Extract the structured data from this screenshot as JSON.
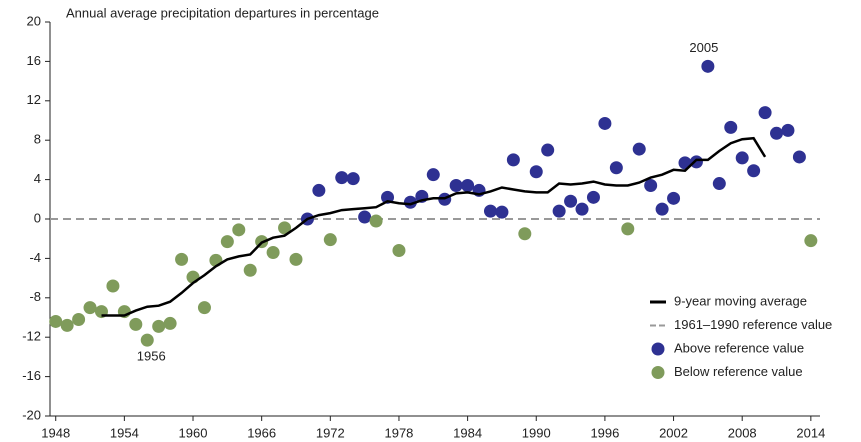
{
  "chart_data": {
    "type": "scatter",
    "title": "Annual average precipitation departures in percentage",
    "xlim": [
      1947.5,
      2014.8
    ],
    "ylim": [
      -20,
      20
    ],
    "xticks": [
      1948,
      1954,
      1960,
      1966,
      1972,
      1978,
      1984,
      1990,
      1996,
      2002,
      2008,
      2014
    ],
    "yticks": [
      20,
      16,
      12,
      8,
      4,
      0,
      -4,
      -8,
      -12,
      -16,
      -20
    ],
    "reference": {
      "name": "1961–1990 reference value",
      "value": 0,
      "color": "#999999"
    },
    "series": [
      {
        "name": "9-year moving average",
        "style": "line",
        "color": "#000000",
        "x": [
          1952,
          1953,
          1954,
          1955,
          1956,
          1957,
          1958,
          1959,
          1960,
          1961,
          1962,
          1963,
          1964,
          1965,
          1966,
          1967,
          1968,
          1969,
          1970,
          1971,
          1972,
          1973,
          1974,
          1975,
          1976,
          1977,
          1978,
          1979,
          1980,
          1981,
          1982,
          1983,
          1984,
          1985,
          1986,
          1987,
          1988,
          1989,
          1990,
          1991,
          1992,
          1993,
          1994,
          1995,
          1996,
          1997,
          1998,
          1999,
          2000,
          2001,
          2002,
          2003,
          2004,
          2005,
          2006,
          2007,
          2008,
          2009,
          2010
        ],
        "values": [
          -9.8,
          -9.8,
          -9.8,
          -9.3,
          -8.9,
          -8.8,
          -8.4,
          -7.5,
          -6.5,
          -5.7,
          -4.8,
          -4.1,
          -3.8,
          -3.6,
          -2.4,
          -1.9,
          -1.7,
          -0.9,
          0,
          0.4,
          0.6,
          0.9,
          1.0,
          1.1,
          1.2,
          1.8,
          1.6,
          1.5,
          1.9,
          2.1,
          2.1,
          2.6,
          2.7,
          2.5,
          2.8,
          3.2,
          3.0,
          2.8,
          2.7,
          2.7,
          3.6,
          3.5,
          3.6,
          3.8,
          3.5,
          3.4,
          3.4,
          3.7,
          4.2,
          4.5,
          5.0,
          4.9,
          6.0,
          6.0,
          6.9,
          7.7,
          8.1,
          8.2,
          6.3
        ]
      },
      {
        "name": "Above reference value",
        "style": "points",
        "color": "#2e3192",
        "x": [
          1970,
          1971,
          1973,
          1974,
          1975,
          1977,
          1979,
          1980,
          1981,
          1982,
          1983,
          1984,
          1985,
          1986,
          1987,
          1988,
          1990,
          1991,
          1992,
          1993,
          1994,
          1995,
          1996,
          1997,
          1999,
          2000,
          2001,
          2002,
          2003,
          2004,
          2005,
          2006,
          2007,
          2008,
          2009,
          2010,
          2011,
          2012,
          2013
        ],
        "values": [
          0.0,
          2.9,
          4.2,
          4.1,
          0.2,
          2.2,
          1.7,
          2.3,
          4.5,
          2.0,
          3.4,
          3.4,
          2.9,
          0.8,
          0.7,
          6.0,
          4.8,
          7.0,
          0.8,
          1.8,
          1.0,
          2.2,
          9.7,
          5.2,
          7.1,
          3.4,
          1.0,
          2.1,
          5.7,
          5.8,
          15.5,
          3.6,
          9.3,
          6.2,
          4.9,
          10.8,
          8.7,
          9.0,
          6.3
        ]
      },
      {
        "name": "Below reference value",
        "style": "points",
        "color": "#7f9b5b",
        "x": [
          1948,
          1949,
          1950,
          1951,
          1952,
          1953,
          1954,
          1955,
          1956,
          1957,
          1958,
          1959,
          1960,
          1961,
          1962,
          1963,
          1964,
          1965,
          1966,
          1967,
          1968,
          1969,
          1972,
          1976,
          1978,
          1989,
          1998,
          2014
        ],
        "values": [
          -10.4,
          -10.8,
          -10.2,
          -9.0,
          -9.4,
          -6.8,
          -9.4,
          -10.7,
          -12.3,
          -10.9,
          -10.6,
          -4.1,
          -5.9,
          -9.0,
          -4.2,
          -2.3,
          -1.1,
          -5.2,
          -2.3,
          -3.4,
          -0.9,
          -4.1,
          -2.1,
          -0.2,
          -3.2,
          -1.5,
          -1.0,
          -2.2
        ]
      }
    ],
    "annotations": [
      "2005",
      "1956"
    ]
  }
}
